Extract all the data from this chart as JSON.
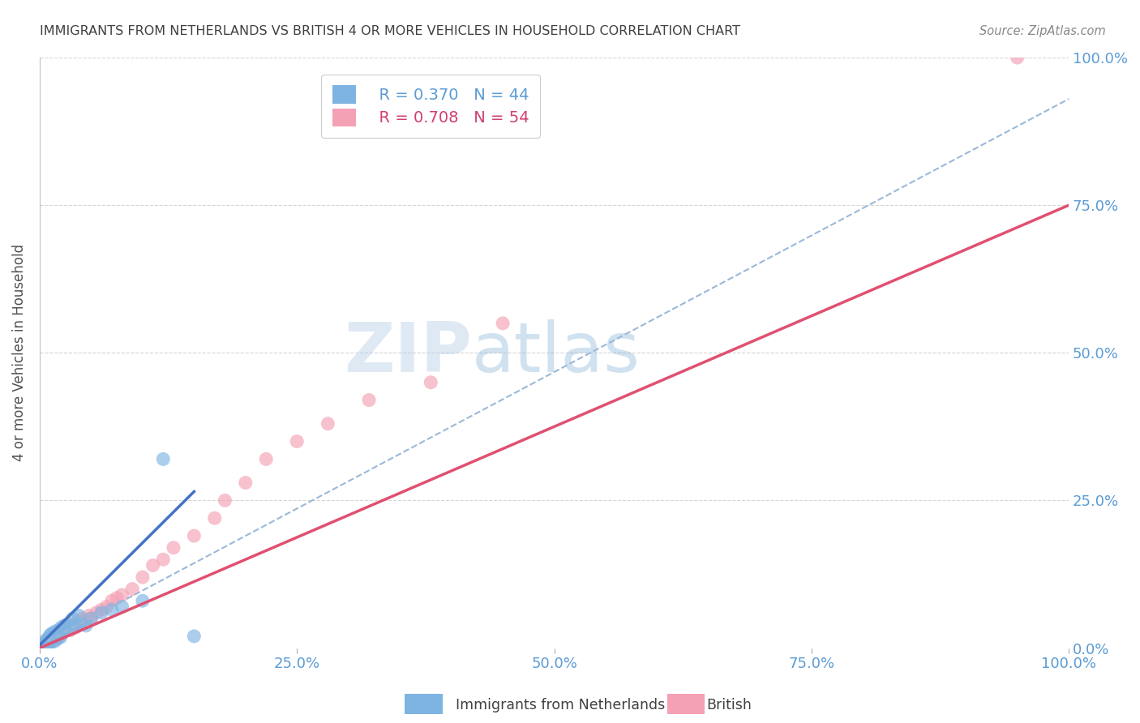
{
  "title": "IMMIGRANTS FROM NETHERLANDS VS BRITISH 4 OR MORE VEHICLES IN HOUSEHOLD CORRELATION CHART",
  "source": "Source: ZipAtlas.com",
  "ylabel": "4 or more Vehicles in Household",
  "xlim": [
    0.0,
    1.0
  ],
  "ylim": [
    0.0,
    1.0
  ],
  "xticks": [
    0.0,
    0.25,
    0.5,
    0.75,
    1.0
  ],
  "yticks": [
    0.0,
    0.25,
    0.5,
    0.75,
    1.0
  ],
  "xtick_labels": [
    "0.0%",
    "25.0%",
    "50.0%",
    "75.0%",
    "100.0%"
  ],
  "ytick_labels": [
    "0.0%",
    "25.0%",
    "50.0%",
    "75.0%",
    "100.0%"
  ],
  "series1_name": "Immigrants from Netherlands",
  "series1_color": "#7EB4E2",
  "series1_R": 0.37,
  "series1_N": 44,
  "series2_name": "British",
  "series2_color": "#F4A0B5",
  "series2_R": 0.708,
  "series2_N": 54,
  "watermark_zip": "ZIP",
  "watermark_atlas": "atlas",
  "background_color": "#ffffff",
  "grid_color": "#d5d5d5",
  "axis_label_color": "#5b9bd5",
  "title_color": "#404040",
  "series1_x": [
    0.002,
    0.003,
    0.004,
    0.005,
    0.005,
    0.006,
    0.006,
    0.007,
    0.007,
    0.008,
    0.009,
    0.009,
    0.01,
    0.01,
    0.011,
    0.012,
    0.012,
    0.013,
    0.014,
    0.015,
    0.015,
    0.016,
    0.017,
    0.018,
    0.019,
    0.02,
    0.021,
    0.022,
    0.024,
    0.025,
    0.027,
    0.03,
    0.032,
    0.035,
    0.038,
    0.04,
    0.045,
    0.05,
    0.06,
    0.07,
    0.08,
    0.1,
    0.12,
    0.15
  ],
  "series1_y": [
    0.003,
    0.005,
    0.004,
    0.008,
    0.002,
    0.007,
    0.012,
    0.005,
    0.015,
    0.01,
    0.008,
    0.018,
    0.012,
    0.022,
    0.009,
    0.015,
    0.025,
    0.018,
    0.02,
    0.012,
    0.028,
    0.022,
    0.016,
    0.03,
    0.025,
    0.018,
    0.035,
    0.028,
    0.038,
    0.032,
    0.04,
    0.035,
    0.05,
    0.038,
    0.055,
    0.04,
    0.038,
    0.05,
    0.06,
    0.065,
    0.07,
    0.08,
    0.32,
    0.02
  ],
  "series2_x": [
    0.002,
    0.003,
    0.004,
    0.005,
    0.006,
    0.007,
    0.008,
    0.009,
    0.01,
    0.011,
    0.012,
    0.013,
    0.014,
    0.015,
    0.016,
    0.017,
    0.018,
    0.019,
    0.02,
    0.022,
    0.024,
    0.025,
    0.027,
    0.03,
    0.032,
    0.035,
    0.037,
    0.04,
    0.042,
    0.045,
    0.048,
    0.05,
    0.055,
    0.06,
    0.065,
    0.07,
    0.075,
    0.08,
    0.09,
    0.1,
    0.11,
    0.12,
    0.13,
    0.15,
    0.17,
    0.18,
    0.2,
    0.22,
    0.25,
    0.28,
    0.32,
    0.38,
    0.45,
    0.95
  ],
  "series2_y": [
    0.003,
    0.005,
    0.004,
    0.007,
    0.006,
    0.009,
    0.008,
    0.012,
    0.01,
    0.014,
    0.012,
    0.016,
    0.015,
    0.018,
    0.016,
    0.02,
    0.022,
    0.024,
    0.02,
    0.025,
    0.028,
    0.03,
    0.035,
    0.03,
    0.04,
    0.035,
    0.045,
    0.04,
    0.05,
    0.045,
    0.055,
    0.05,
    0.06,
    0.065,
    0.07,
    0.08,
    0.085,
    0.09,
    0.1,
    0.12,
    0.14,
    0.15,
    0.17,
    0.19,
    0.22,
    0.25,
    0.28,
    0.32,
    0.35,
    0.38,
    0.42,
    0.45,
    0.55,
    1.0
  ],
  "line1_color": "#4472C4",
  "line2_color": "#E05070",
  "line1_dash_color": "#9BB8D8",
  "line1_x_start": 0.0,
  "line1_y_start": 0.005,
  "line1_x_end": 0.15,
  "line1_y_end": 0.265,
  "line1_dash_x_end": 1.0,
  "line1_dash_y_end": 0.93,
  "line2_x_start": 0.0,
  "line2_y_start": 0.0,
  "line2_x_end": 1.0,
  "line2_y_end": 0.75
}
